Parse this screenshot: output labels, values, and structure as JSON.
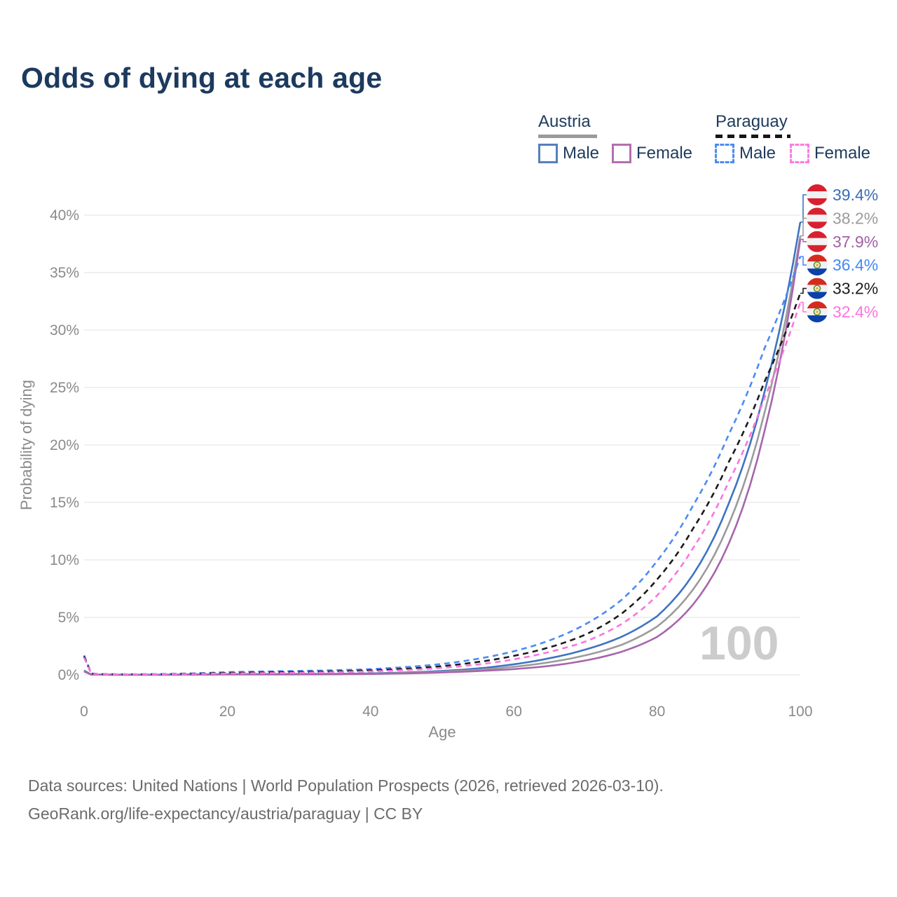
{
  "title": {
    "text": "Odds of dying at each age",
    "color": "#1c3a5e"
  },
  "legend": {
    "text_color": "#1e3a5c",
    "groups": [
      {
        "name": "Austria",
        "underline_style": "solid",
        "underline_color": "#9a9a9a",
        "items": [
          {
            "label": "Male",
            "swatch_color": "#5580bd",
            "swatch_style": "solid"
          },
          {
            "label": "Female",
            "swatch_color": "#b36fae",
            "swatch_style": "solid"
          }
        ]
      },
      {
        "name": "Paraguay",
        "underline_style": "dashed",
        "underline_color": "#161616",
        "items": [
          {
            "label": "Male",
            "swatch_color": "#4b8bf5",
            "swatch_style": "dashed"
          },
          {
            "label": "Female",
            "swatch_color": "#fc7ce0",
            "swatch_style": "dashed"
          }
        ]
      }
    ]
  },
  "chart_data": {
    "type": "line",
    "title": "Odds of dying at each age",
    "xlabel": "Age",
    "ylabel": "Probability of dying",
    "xlim": [
      0,
      100
    ],
    "ylim_pct": [
      0,
      40
    ],
    "x_ticks": [
      0,
      20,
      40,
      60,
      80,
      100
    ],
    "y_ticks_pct": [
      0,
      5,
      10,
      15,
      20,
      25,
      30,
      35,
      40
    ],
    "grid": "horizontal",
    "legend_position": "top-right",
    "watermark": "100",
    "axis_color": "#8a8a8a",
    "grid_color": "#ebebeb",
    "watermark_color": "#cccccc",
    "ages": [
      0,
      1,
      2,
      5,
      10,
      15,
      20,
      25,
      30,
      35,
      40,
      45,
      50,
      55,
      60,
      65,
      70,
      75,
      80,
      85,
      90,
      95,
      100
    ],
    "series": [
      {
        "id": "austria-male",
        "country": "Austria",
        "sex": "Male",
        "dash": "solid",
        "color": "#3e73c2",
        "label_color": "#3a6cb8",
        "end_label": "39.4%",
        "end_value_pct": 39.4,
        "flag": "austria",
        "values_pct": [
          0.38,
          0.03,
          0.02,
          0.01,
          0.01,
          0.03,
          0.06,
          0.07,
          0.08,
          0.09,
          0.13,
          0.21,
          0.34,
          0.56,
          0.92,
          1.45,
          2.2,
          3.3,
          5.1,
          8.7,
          14.9,
          24.6,
          39.4
        ]
      },
      {
        "id": "austria-all",
        "country": "Austria",
        "sex": "Both",
        "dash": "solid",
        "color": "#9b9b9b",
        "label_color": "#9b9b9b",
        "end_label": "38.2%",
        "end_value_pct": 38.2,
        "flag": "austria",
        "values_pct": [
          0.33,
          0.03,
          0.02,
          0.01,
          0.01,
          0.02,
          0.05,
          0.05,
          0.06,
          0.07,
          0.1,
          0.17,
          0.27,
          0.44,
          0.7,
          1.1,
          1.7,
          2.6,
          4.2,
          7.4,
          13.1,
          22.8,
          38.2
        ]
      },
      {
        "id": "austria-female",
        "country": "Austria",
        "sex": "Female",
        "dash": "solid",
        "color": "#a765ab",
        "label_color": "#a25fa5",
        "end_label": "37.9%",
        "end_value_pct": 37.9,
        "flag": "austria",
        "values_pct": [
          0.29,
          0.02,
          0.02,
          0.01,
          0.01,
          0.02,
          0.03,
          0.03,
          0.04,
          0.05,
          0.08,
          0.13,
          0.21,
          0.33,
          0.5,
          0.78,
          1.25,
          2.0,
          3.3,
          6.1,
          11.4,
          21.2,
          37.9
        ]
      },
      {
        "id": "paraguay-male",
        "country": "Paraguay",
        "sex": "Male",
        "dash": "dashed",
        "color": "#4b8bf5",
        "label_color": "#4488f6",
        "end_label": "36.4%",
        "end_value_pct": 36.4,
        "flag": "paraguay",
        "values_pct": [
          1.7,
          0.12,
          0.07,
          0.05,
          0.06,
          0.13,
          0.24,
          0.3,
          0.34,
          0.4,
          0.5,
          0.68,
          0.95,
          1.4,
          2.05,
          3.0,
          4.4,
          6.5,
          9.9,
          14.7,
          20.9,
          28.4,
          36.4
        ]
      },
      {
        "id": "paraguay-all",
        "country": "Paraguay",
        "sex": "Both",
        "dash": "dashed",
        "color": "#1c1c1c",
        "label_color": "#1c1c1c",
        "end_label": "33.2%",
        "end_value_pct": 33.2,
        "flag": "paraguay",
        "values_pct": [
          1.6,
          0.11,
          0.06,
          0.04,
          0.05,
          0.1,
          0.17,
          0.21,
          0.25,
          0.3,
          0.39,
          0.53,
          0.76,
          1.12,
          1.65,
          2.4,
          3.5,
          5.3,
          8.3,
          12.7,
          18.5,
          25.5,
          33.2
        ]
      },
      {
        "id": "paraguay-female",
        "country": "Paraguay",
        "sex": "Female",
        "dash": "dashed",
        "color": "#fa75e0",
        "label_color": "#fa75e0",
        "end_label": "32.4%",
        "end_value_pct": 32.4,
        "flag": "paraguay",
        "values_pct": [
          1.5,
          0.1,
          0.06,
          0.04,
          0.04,
          0.08,
          0.12,
          0.15,
          0.18,
          0.23,
          0.3,
          0.42,
          0.61,
          0.9,
          1.35,
          2.0,
          2.9,
          4.4,
          6.9,
          11.0,
          16.8,
          24.1,
          32.4
        ]
      }
    ]
  },
  "flag_colors": {
    "austria": {
      "red": "#d8212f",
      "white": "#f2f2f2"
    },
    "paraguay": {
      "red": "#d52b1e",
      "white": "#f2f2f2",
      "blue": "#0b41a8",
      "emblem_ring": "#5a8f3c",
      "emblem_fill": "#f3eecf",
      "emblem_dot": "#d7b93a"
    }
  },
  "footer": {
    "line1": "Data sources: United Nations | World Population Prospects (2026, retrieved 2026-03-10).",
    "line2": "GeoRank.org/life-expectancy/austria/paraguay | CC BY",
    "color": "#6b6b6b"
  }
}
